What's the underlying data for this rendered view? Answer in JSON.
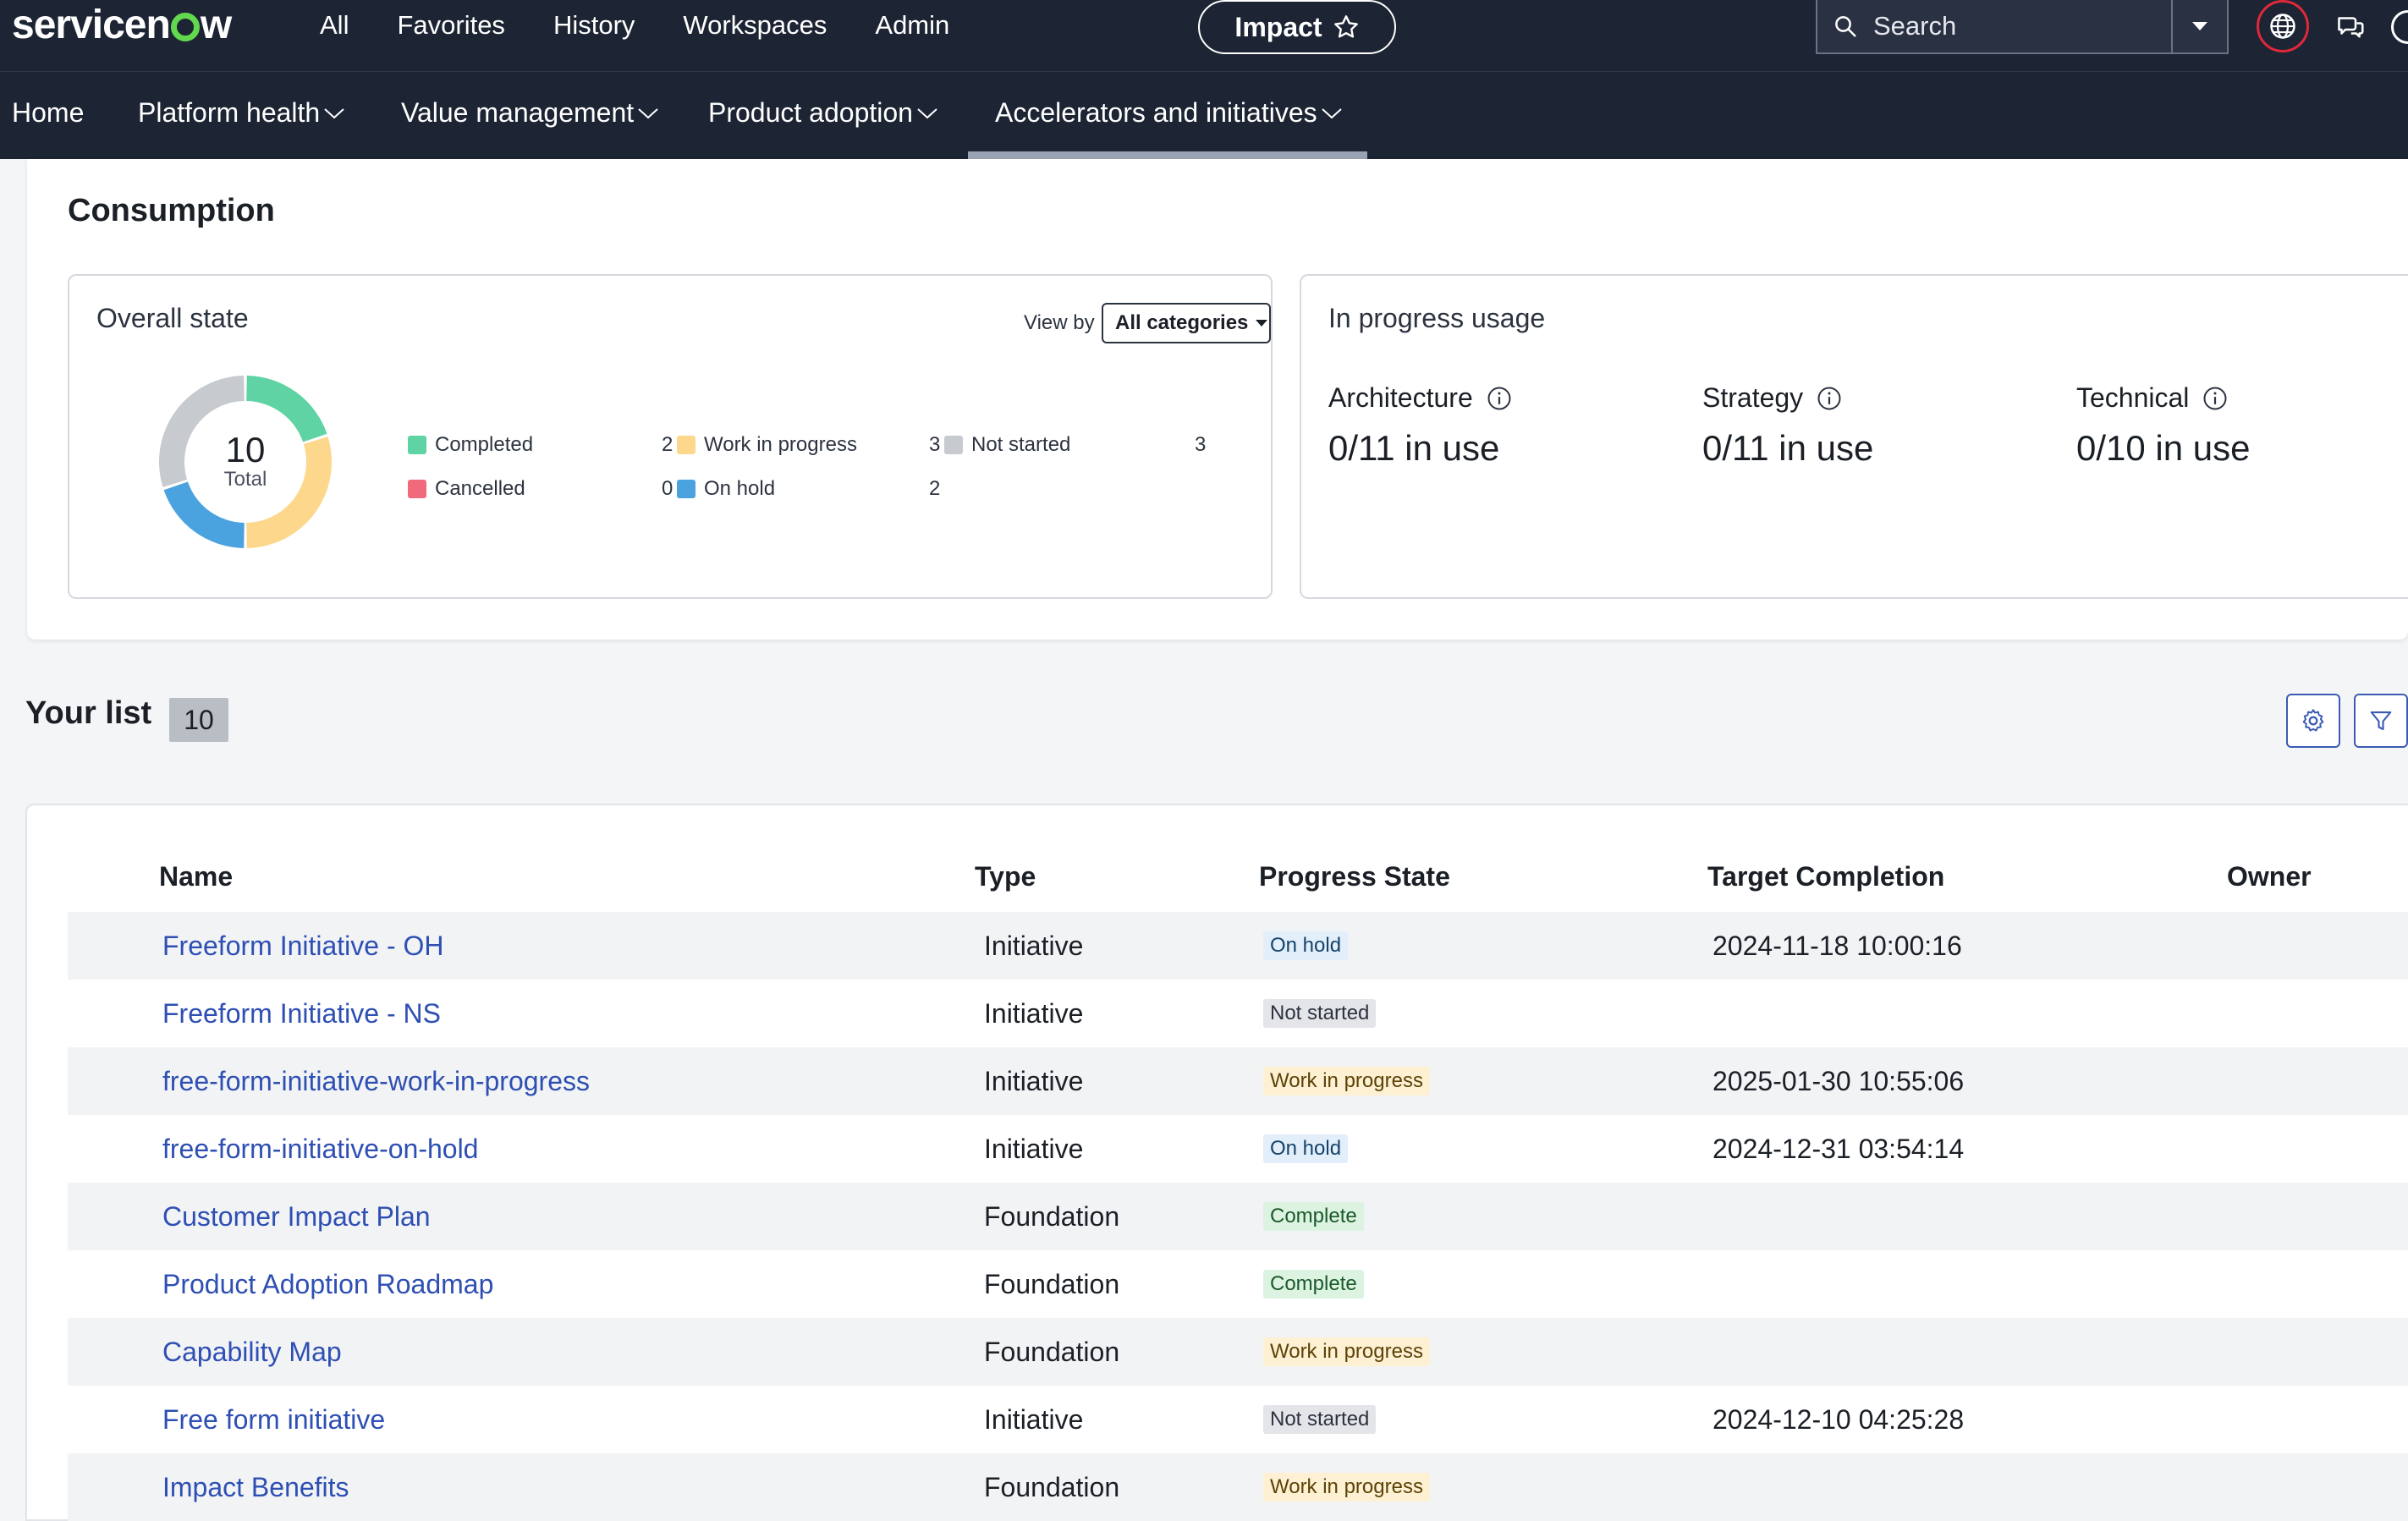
{
  "app": {
    "logo_text": "servicenow",
    "logo_dot_color": "#62d84e"
  },
  "top_menu": [
    "All",
    "Favorites",
    "History",
    "Workspaces",
    "Admin"
  ],
  "impact_pill": "Impact",
  "search": {
    "placeholder": "Search"
  },
  "subnav": {
    "tabs": [
      "Home",
      "Platform health",
      "Value management",
      "Product adoption",
      "Accelerators and initiatives"
    ],
    "active_tab": "Accelerators and initiatives"
  },
  "consumption": {
    "title": "Consumption",
    "overall_state": {
      "title": "Overall state",
      "view_by_label": "View by",
      "view_by_value": "All categories",
      "total": "10",
      "total_label": "Total",
      "legend": [
        {
          "label": "Completed",
          "value": "2",
          "color": "#5fd3a3"
        },
        {
          "label": "Work in progress",
          "value": "3",
          "color": "#fcd78c"
        },
        {
          "label": "Not started",
          "value": "3",
          "color": "#c7cacf"
        },
        {
          "label": "Cancelled",
          "value": "0",
          "color": "#f06a7b"
        },
        {
          "label": "On hold",
          "value": "2",
          "color": "#4aa3df"
        }
      ]
    },
    "in_progress_usage": {
      "title": "In progress usage",
      "items": [
        {
          "label": "Architecture",
          "value": "0/11 in use"
        },
        {
          "label": "Strategy",
          "value": "0/11 in use"
        },
        {
          "label": "Technical",
          "value": "0/10 in use"
        }
      ]
    }
  },
  "your_list": {
    "title": "Your list",
    "count": "10",
    "columns": [
      "Name",
      "Type",
      "Progress State",
      "Target Completion",
      "Owner"
    ],
    "rows": [
      {
        "name": "Freeform Initiative - OH",
        "type": "Initiative",
        "state": "On hold",
        "target": "2024-11-18 10:00:16",
        "owner": ""
      },
      {
        "name": "Freeform Initiative - NS",
        "type": "Initiative",
        "state": "Not started",
        "target": "",
        "owner": ""
      },
      {
        "name": "free-form-initiative-work-in-progress",
        "type": "Initiative",
        "state": "Work in progress",
        "target": "2025-01-30 10:55:06",
        "owner": ""
      },
      {
        "name": "free-form-initiative-on-hold",
        "type": "Initiative",
        "state": "On hold",
        "target": "2024-12-31 03:54:14",
        "owner": ""
      },
      {
        "name": "Customer Impact Plan",
        "type": "Foundation",
        "state": "Complete",
        "target": "",
        "owner": ""
      },
      {
        "name": "Product Adoption Roadmap",
        "type": "Foundation",
        "state": "Complete",
        "target": "",
        "owner": ""
      },
      {
        "name": "Capability Map",
        "type": "Foundation",
        "state": "Work in progress",
        "target": "",
        "owner": ""
      },
      {
        "name": "Free form initiative",
        "type": "Initiative",
        "state": "Not started",
        "target": "2024-12-10 04:25:28",
        "owner": ""
      },
      {
        "name": "Impact Benefits",
        "type": "Foundation",
        "state": "Work in progress",
        "target": "",
        "owner": ""
      }
    ]
  }
}
